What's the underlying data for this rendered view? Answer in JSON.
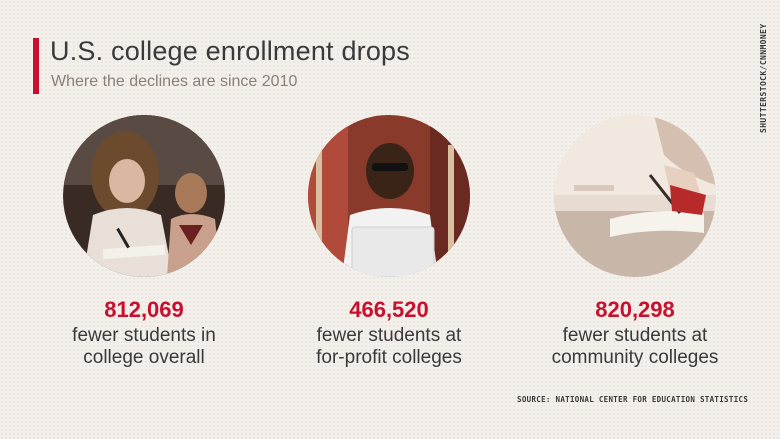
{
  "header": {
    "title": "U.S. college enrollment drops",
    "subtitle": "Where the declines are since 2010"
  },
  "photo_credit": "SHUTTERSTOCK/CNNMONEY",
  "stats": [
    {
      "value": "812,069",
      "line1": "fewer students in",
      "line2": "college overall"
    },
    {
      "value": "466,520",
      "line1": "fewer students at",
      "line2": "for-profit colleges"
    },
    {
      "value": "820,298",
      "line1": "fewer students at",
      "line2": "community colleges"
    }
  ],
  "source": "SOURCE: NATIONAL CENTER FOR EDUCATION STATISTICS",
  "colors": {
    "accent": "#c8102e",
    "text": "#3a3a3a",
    "subtitle": "#8b7f78",
    "background": "#f3efeb"
  }
}
